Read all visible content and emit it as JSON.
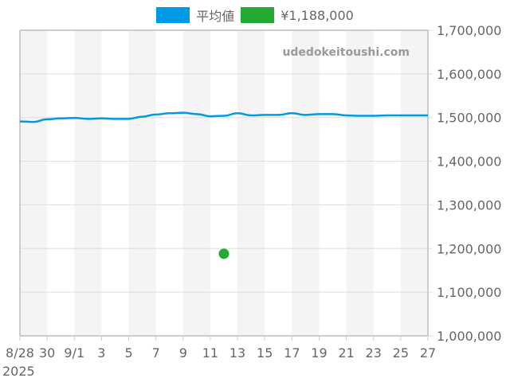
{
  "legend": {
    "items": [
      {
        "label": "平均値",
        "color": "#0099e6"
      },
      {
        "label": "¥1,188,000",
        "color": "#22aa33"
      }
    ]
  },
  "watermark": "udedokeitoushi.com",
  "chart_data": {
    "type": "line",
    "title": "",
    "xlabel": "",
    "ylabel": "",
    "year_label": "2025",
    "x_tick_labels": [
      "8/28",
      "30",
      "9/1",
      "3",
      "5",
      "7",
      "9",
      "11",
      "13",
      "15",
      "17",
      "19",
      "21",
      "23",
      "25",
      "27"
    ],
    "y_tick_labels": [
      "1,700,000",
      "1,600,000",
      "1,500,000",
      "1,400,000",
      "1,300,000",
      "1,200,000",
      "1,100,000",
      "1,000,000"
    ],
    "ylim": [
      1000000,
      1700000
    ],
    "y_axis_position": "right",
    "grid": true,
    "legend_position": "top",
    "x": [
      "8/28",
      "8/29",
      "8/30",
      "8/31",
      "9/1",
      "9/2",
      "9/3",
      "9/4",
      "9/5",
      "9/6",
      "9/7",
      "9/8",
      "9/9",
      "9/10",
      "9/11",
      "9/12",
      "9/13",
      "9/14",
      "9/15",
      "9/16",
      "9/17",
      "9/18",
      "9/19",
      "9/20",
      "9/21",
      "9/22",
      "9/23",
      "9/24",
      "9/25",
      "9/26",
      "9/27"
    ],
    "series": [
      {
        "name": "平均値",
        "type": "line",
        "color": "#0099e6",
        "values": [
          1491000,
          1490000,
          1496000,
          1498000,
          1499000,
          1497000,
          1498000,
          1497000,
          1497000,
          1502000,
          1507000,
          1510000,
          1511000,
          1508000,
          1503000,
          1504000,
          1510000,
          1505000,
          1506000,
          1506000,
          1510000,
          1506000,
          1508000,
          1508000,
          1505000,
          1504000,
          1504000,
          1505000,
          1505000,
          1505000,
          1505000
        ]
      },
      {
        "name": "¥1,188,000",
        "type": "scatter",
        "color": "#22aa33",
        "points": [
          {
            "x": "9/12",
            "y": 1188000
          }
        ]
      }
    ]
  }
}
